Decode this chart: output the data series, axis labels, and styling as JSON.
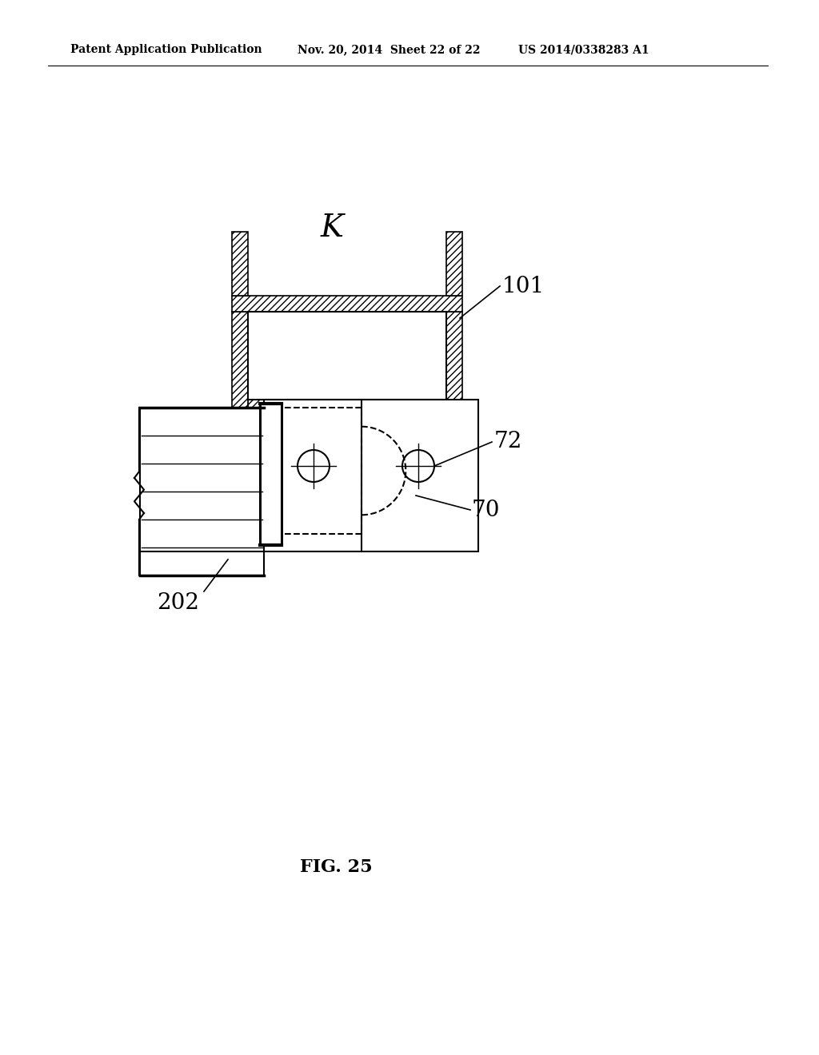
{
  "bg_color": "#ffffff",
  "line_color": "#000000",
  "header_text": "Patent Application Publication",
  "header_date": "Nov. 20, 2014  Sheet 22 of 22",
  "header_patent": "US 2014/0338283 A1",
  "fig_label": "FIG. 25",
  "label_K": "K",
  "label_101": "101",
  "label_72": "72",
  "label_70": "70",
  "label_202": "202"
}
